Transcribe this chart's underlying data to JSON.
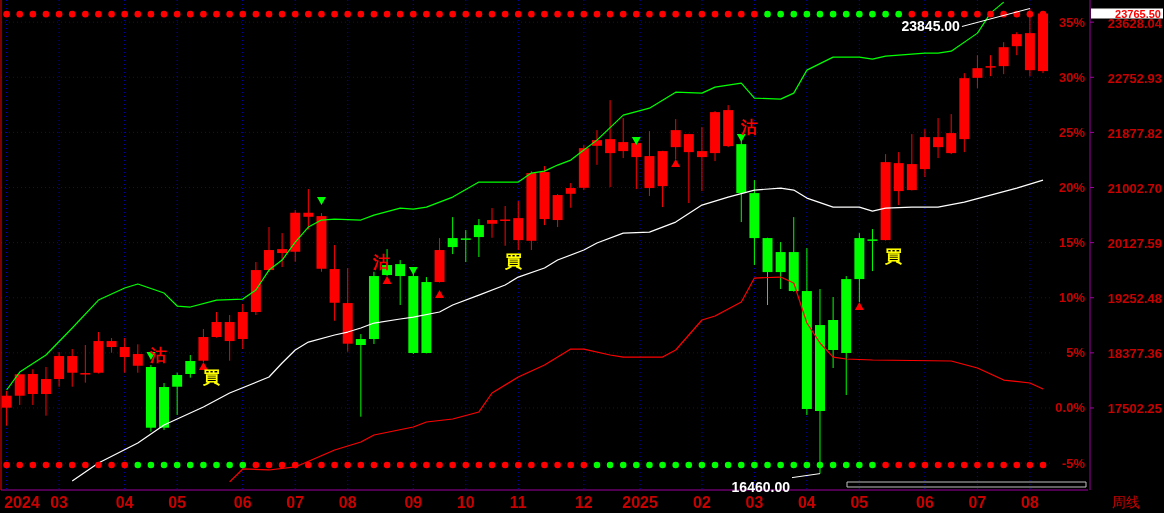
{
  "chart_data": {
    "type": "candlestick",
    "xlabel": "周线",
    "x": [
      "2024-01-29",
      "2024-02-05",
      "2024-02-12",
      "2024-02-19",
      "2024-02-26",
      "2024-03-04",
      "2024-03-11",
      "2024-03-18",
      "2024-03-25",
      "2024-04-01",
      "2024-04-08",
      "2024-04-15",
      "2024-04-22",
      "2024-04-29",
      "2024-05-06",
      "2024-05-13",
      "2024-05-20",
      "2024-05-27",
      "2024-06-03",
      "2024-06-10",
      "2024-06-17",
      "2024-06-24",
      "2024-07-01",
      "2024-07-08",
      "2024-07-15",
      "2024-07-22",
      "2024-07-29",
      "2024-08-05",
      "2024-08-12",
      "2024-08-19",
      "2024-08-26",
      "2024-09-02",
      "2024-09-09",
      "2024-09-16",
      "2024-09-23",
      "2024-09-30",
      "2024-10-07",
      "2024-10-14",
      "2024-10-21",
      "2024-10-28",
      "2024-11-04",
      "2024-11-11",
      "2024-11-18",
      "2024-11-25",
      "2024-12-02",
      "2024-12-09",
      "2024-12-16",
      "2024-12-23",
      "2024-12-30",
      "2025-01-06",
      "2025-01-13",
      "2025-01-20",
      "2025-01-27",
      "2025-02-03",
      "2025-02-10",
      "2025-02-17",
      "2025-02-24",
      "2025-03-03",
      "2025-03-10",
      "2025-03-17",
      "2025-03-24",
      "2025-03-31",
      "2025-04-07",
      "2025-04-14",
      "2025-04-21",
      "2025-04-28",
      "2025-05-05",
      "2025-05-12",
      "2025-05-19",
      "2025-05-26",
      "2025-06-02",
      "2025-06-09",
      "2025-06-16",
      "2025-06-23",
      "2025-06-30",
      "2025-07-07",
      "2025-07-14",
      "2025-07-21",
      "2025-07-28",
      "2025-08-04"
    ],
    "ohlc": [
      [
        17507,
        17772,
        17221,
        17697
      ],
      [
        17697,
        18042,
        17550,
        18037
      ],
      [
        17724,
        18116,
        17550,
        18042
      ],
      [
        17724,
        18153,
        17380,
        17962
      ],
      [
        17962,
        18386,
        17840,
        18327
      ],
      [
        18062,
        18438,
        17840,
        18327
      ],
      [
        18053,
        18502,
        17904,
        18057
      ],
      [
        18062,
        18708,
        18050,
        18565
      ],
      [
        18470,
        18613,
        18380,
        18565
      ],
      [
        18311,
        18613,
        18062,
        18470
      ],
      [
        18173,
        18513,
        18062,
        18359
      ],
      [
        18153,
        18184,
        17126,
        17189
      ],
      [
        17835,
        17899,
        17153,
        17189
      ],
      [
        18026,
        18062,
        17391,
        17840
      ],
      [
        18248,
        18343,
        17983,
        18042
      ],
      [
        18253,
        18756,
        18232,
        18629
      ],
      [
        18629,
        19026,
        18620,
        18867
      ],
      [
        18565,
        18978,
        18253,
        18867
      ],
      [
        18597,
        19153,
        18438,
        19026
      ],
      [
        19026,
        19819,
        18978,
        19692
      ],
      [
        19692,
        20375,
        19660,
        20010
      ],
      [
        19962,
        20279,
        19740,
        20025
      ],
      [
        19983,
        20644,
        19824,
        20602
      ],
      [
        20538,
        20978,
        20338,
        20602
      ],
      [
        19713,
        20597,
        19665,
        20549
      ],
      [
        19173,
        20089,
        18888,
        19708
      ],
      [
        18523,
        19724,
        18396,
        19168
      ],
      [
        18597,
        18676,
        17364,
        18502
      ],
      [
        19597,
        19665,
        18518,
        18597
      ],
      [
        19772,
        20025,
        19600,
        19613
      ],
      [
        19787,
        19851,
        19137,
        19597
      ],
      [
        19597,
        19665,
        18359,
        18375
      ],
      [
        19502,
        19581,
        18370,
        18375
      ],
      [
        19502,
        20200,
        19495,
        20010
      ],
      [
        20200,
        20533,
        19946,
        20057
      ],
      [
        20195,
        20327,
        19819,
        20190
      ],
      [
        20406,
        20502,
        19899,
        20216
      ],
      [
        20427,
        20676,
        20205,
        20486
      ],
      [
        20490,
        20708,
        20078,
        20495
      ],
      [
        20168,
        20787,
        20010,
        20517
      ],
      [
        20157,
        21263,
        20010,
        21232
      ],
      [
        20502,
        21343,
        20406,
        21248
      ],
      [
        20486,
        20898,
        20375,
        20883
      ],
      [
        20903,
        21073,
        20681,
        20994
      ],
      [
        20998,
        21676,
        20962,
        21628
      ],
      [
        21665,
        21914,
        21363,
        21755
      ],
      [
        21549,
        22390,
        21009,
        21771
      ],
      [
        21581,
        22105,
        21470,
        21724
      ],
      [
        21486,
        21712,
        20978,
        21708
      ],
      [
        20994,
        21898,
        20867,
        21502
      ],
      [
        21025,
        21585,
        20692,
        21581
      ],
      [
        21644,
        22089,
        21454,
        21914
      ],
      [
        21565,
        21855,
        20756,
        21851
      ],
      [
        21486,
        21962,
        20946,
        21581
      ],
      [
        21549,
        22216,
        21422,
        22200
      ],
      [
        21660,
        22311,
        21644,
        22232
      ],
      [
        21692,
        21803,
        20454,
        20914
      ],
      [
        20914,
        21121,
        19772,
        20200
      ],
      [
        20200,
        20205,
        19137,
        19660
      ],
      [
        19978,
        20137,
        19391,
        19660
      ],
      [
        19978,
        20533,
        19350,
        19359
      ],
      [
        19359,
        20041,
        17391,
        17486
      ],
      [
        18819,
        19391,
        16460,
        17454
      ],
      [
        18899,
        19264,
        18137,
        18423
      ],
      [
        19549,
        19597,
        17708,
        18375
      ],
      [
        20200,
        20279,
        19184,
        19549
      ],
      [
        20179,
        20343,
        19676,
        20175
      ],
      [
        20168,
        21533,
        20160,
        21406
      ],
      [
        20946,
        21565,
        20724,
        21390
      ],
      [
        20962,
        21851,
        20955,
        21375
      ],
      [
        21295,
        21930,
        21168,
        21803
      ],
      [
        21644,
        22105,
        21470,
        21803
      ],
      [
        21549,
        22168,
        21533,
        21867
      ],
      [
        21771,
        22819,
        21565,
        22739
      ],
      [
        22744,
        23104,
        22581,
        22898
      ],
      [
        22925,
        23104,
        22771,
        22930
      ],
      [
        22930,
        23311,
        22803,
        23231
      ],
      [
        23247,
        23469,
        23104,
        23438
      ],
      [
        22866,
        23845,
        22771,
        23454
      ],
      [
        22851,
        23787,
        22819,
        23765.5
      ]
    ],
    "colors": [
      "#ff0000",
      "#ff0000",
      "#ff0000",
      "#ff0000",
      "#ff0000",
      "#ff0000",
      "#ff0000",
      "#ff0000",
      "#ff0000",
      "#ff0000",
      "#ff0000",
      "#00ff00",
      "#00ff00",
      "#00ff00",
      "#00ff00",
      "#ff0000",
      "#ff0000",
      "#ff0000",
      "#ff0000",
      "#ff0000",
      "#ff0000",
      "#ff0000",
      "#ff0000",
      "#ff0000",
      "#ff0000",
      "#ff0000",
      "#ff0000",
      "#00ff00",
      "#00ff00",
      "#00ff00",
      "#00ff00",
      "#00ff00",
      "#00ff00",
      "#ff0000",
      "#00ff00",
      "#00ff00",
      "#00ff00",
      "#ff0000",
      "#ff0000",
      "#ff0000",
      "#ff0000",
      "#ff0000",
      "#ff0000",
      "#ff0000",
      "#ff0000",
      "#ff0000",
      "#ff0000",
      "#ff0000",
      "#ff0000",
      "#ff0000",
      "#ff0000",
      "#ff0000",
      "#ff0000",
      "#ff0000",
      "#ff0000",
      "#ff0000",
      "#00ff00",
      "#00ff00",
      "#00ff00",
      "#00ff00",
      "#00ff00",
      "#00ff00",
      "#00ff00",
      "#00ff00",
      "#00ff00",
      "#00ff00",
      "#00ff00",
      "#ff0000",
      "#ff0000",
      "#ff0000",
      "#ff0000",
      "#ff0000",
      "#ff0000",
      "#ff0000",
      "#ff0000",
      "#ff0000",
      "#ff0000",
      "#ff0000",
      "#ff0000",
      "#ff0000"
    ],
    "series": [
      {
        "type": "line",
        "color": "#00ff00",
        "x": [
          "2024-01-29",
          "2024-02-05",
          "2024-02-19",
          "2024-03-04",
          "2024-03-18",
          "2024-04-01",
          "2024-04-08",
          "2024-04-22",
          "2024-04-29",
          "2024-05-06",
          "2024-05-20",
          "2024-06-03",
          "2024-06-10",
          "2024-06-17",
          "2024-06-24",
          "2024-07-01",
          "2024-07-08",
          "2024-07-15",
          "2024-07-22",
          "2024-08-05",
          "2024-08-12",
          "2024-08-26",
          "2024-09-02",
          "2024-09-09",
          "2024-09-23",
          "2024-10-07",
          "2024-10-28",
          "2024-11-04",
          "2024-11-11",
          "2024-11-18",
          "2024-11-25",
          "2024-12-02",
          "2024-12-09",
          "2024-12-23",
          "2025-01-06",
          "2025-01-20",
          "2025-02-03",
          "2025-02-10",
          "2025-02-17",
          "2025-02-24",
          "2025-03-03",
          "2025-03-17",
          "2025-03-24",
          "2025-03-31",
          "2025-04-14",
          "2025-04-28",
          "2025-05-05",
          "2025-05-12",
          "2025-06-02",
          "2025-06-09",
          "2025-06-16",
          "2025-06-30",
          "2025-07-07",
          "2025-07-14"
        ],
        "values": [
          17788,
          18073,
          18343,
          18772,
          19216,
          19407,
          19470,
          19327,
          19121,
          19105,
          19216,
          19232,
          19375,
          19692,
          19851,
          20137,
          20375,
          20486,
          20502,
          20486,
          20565,
          20676,
          20660,
          20692,
          20851,
          21089,
          21089,
          21232,
          21263,
          21359,
          21438,
          21597,
          21755,
          22152,
          22263,
          22517,
          22501,
          22597,
          22628,
          22660,
          22422,
          22406,
          22502,
          22866,
          23073,
          23073,
          23041,
          23089,
          23136,
          23136,
          23168,
          23454,
          23771,
          23946
        ]
      },
      {
        "type": "line",
        "color": "#ffffff",
        "x": [
          "2024-03-04",
          "2024-03-18",
          "2024-04-08",
          "2024-04-22",
          "2024-05-13",
          "2024-05-27",
          "2024-06-17",
          "2024-06-24",
          "2024-07-01",
          "2024-07-08",
          "2024-07-22",
          "2024-07-29",
          "2024-08-05",
          "2024-08-12",
          "2024-08-26",
          "2024-09-02",
          "2024-09-16",
          "2024-09-23",
          "2024-10-07",
          "2024-10-21",
          "2024-10-28",
          "2024-11-11",
          "2024-11-18",
          "2024-12-02",
          "2024-12-09",
          "2024-12-23",
          "2025-01-06",
          "2025-01-20",
          "2025-02-03",
          "2025-02-17",
          "2025-03-03",
          "2025-03-17",
          "2025-03-24",
          "2025-03-31",
          "2025-04-14",
          "2025-04-28",
          "2025-05-05",
          "2025-05-12",
          "2025-05-26",
          "2025-06-09",
          "2025-06-23",
          "2025-07-07",
          "2025-07-21",
          "2025-08-04"
        ],
        "values": [
          16343,
          16629,
          16947,
          17232,
          17518,
          17740,
          17994,
          18216,
          18423,
          18549,
          18661,
          18708,
          18772,
          18851,
          18915,
          18946,
          19026,
          19137,
          19295,
          19454,
          19581,
          19724,
          19851,
          20010,
          20121,
          20279,
          20295,
          20454,
          20724,
          20851,
          20962,
          20994,
          20962,
          20835,
          20692,
          20692,
          20629,
          20676,
          20692,
          20692,
          20771,
          20883,
          20994,
          21121
        ]
      },
      {
        "type": "line",
        "color": "#ff0000",
        "x": [
          "2024-05-27",
          "2024-06-03",
          "2024-06-17",
          "2024-07-01",
          "2024-07-22",
          "2024-08-05",
          "2024-08-12",
          "2024-09-02",
          "2024-09-09",
          "2024-09-23",
          "2024-10-07",
          "2024-10-14",
          "2024-10-28",
          "2024-11-11",
          "2024-11-18",
          "2024-11-25",
          "2024-12-02",
          "2024-12-16",
          "2024-12-23",
          "2025-01-13",
          "2025-01-20",
          "2025-02-03",
          "2025-02-10",
          "2025-02-24",
          "2025-03-03",
          "2025-03-17",
          "2025-03-24",
          "2025-03-31",
          "2025-04-07",
          "2025-04-14",
          "2025-04-21",
          "2025-05-05",
          "2025-06-16",
          "2025-06-30",
          "2025-07-14",
          "2025-07-28",
          "2025-08-04"
        ],
        "values": [
          16328,
          16534,
          16518,
          16566,
          16835,
          16962,
          17073,
          17200,
          17280,
          17327,
          17439,
          17740,
          17994,
          18184,
          18311,
          18438,
          18438,
          18343,
          18311,
          18311,
          18423,
          18899,
          18962,
          19184,
          19565,
          19581,
          19486,
          18851,
          18534,
          18311,
          18280,
          18264,
          18248,
          18137,
          17946,
          17899,
          17804
        ]
      },
      {
        "type": "scatter",
        "marker": "triangle",
        "color": "#00ff00",
        "x": [
          "2024-04-15",
          "2024-07-15",
          "2024-09-02",
          "2024-12-30",
          "2025-02-24"
        ],
        "values": [
          18327,
          20787,
          19676,
          21740,
          21787
        ]
      },
      {
        "type": "scatter",
        "marker": "triangle",
        "color": "#ff0000",
        "x": [
          "2024-05-13",
          "2024-08-19",
          "2024-09-16",
          "2025-01-20",
          "2025-04-28"
        ],
        "values": [
          18169,
          19534,
          19311,
          21390,
          19121
        ]
      },
      {
        "type": "scatter",
        "marker": "circle",
        "values": [
          23755,
          23755,
          23755,
          23755,
          23755,
          23755,
          23755,
          23755,
          23755,
          23755,
          23755,
          23755,
          23755,
          23755,
          23755,
          23755,
          23755,
          23755,
          23755,
          23755,
          23755,
          23755,
          23755,
          23755,
          23755,
          23755,
          23755,
          23755,
          23755,
          23755,
          23755,
          23755,
          23755,
          23755,
          23755,
          23755,
          23755,
          23755,
          23755,
          23755,
          23755,
          23755,
          23755,
          23755,
          23755,
          23755,
          23755,
          23755,
          23755,
          23755,
          23755,
          23755,
          23755,
          23755,
          23755,
          23755,
          23755,
          23755,
          23755,
          23755,
          23755,
          23755,
          23755,
          23755,
          23755,
          23755,
          23755,
          23755,
          23755,
          23755,
          23755,
          23755,
          23755,
          23755,
          23755,
          23755,
          23755,
          23755,
          23755,
          23755
        ],
        "colors": [
          "#ff0000",
          "#ff0000",
          "#ff0000",
          "#ff0000",
          "#ff0000",
          "#ff0000",
          "#ff0000",
          "#ff0000",
          "#ff0000",
          "#ff0000",
          "#ff0000",
          "#ff0000",
          "#ff0000",
          "#ff0000",
          "#ff0000",
          "#ff0000",
          "#ff0000",
          "#ff0000",
          "#ff0000",
          "#ff0000",
          "#ff0000",
          "#ff0000",
          "#ff0000",
          "#ff0000",
          "#ff0000",
          "#ff0000",
          "#ff0000",
          "#ff0000",
          "#ff0000",
          "#ff0000",
          "#ff0000",
          "#ff0000",
          "#ff0000",
          "#ff0000",
          "#ff0000",
          "#ff0000",
          "#ff0000",
          "#ff0000",
          "#ff0000",
          "#ff0000",
          "#ff0000",
          "#ff0000",
          "#ff0000",
          "#ff0000",
          "#ff0000",
          "#ff0000",
          "#ff0000",
          "#ff0000",
          "#ff0000",
          "#ff0000",
          "#ff0000",
          "#ff0000",
          "#ff0000",
          "#ff0000",
          "#ff0000",
          "#ff0000",
          "#ff0000",
          "#ff0000",
          "#00ff00",
          "#00ff00",
          "#00ff00",
          "#00ff00",
          "#00ff00",
          "#00ff00",
          "#00ff00",
          "#00ff00",
          "#00ff00",
          "#00ff00",
          "#00ff00",
          "#ff0000",
          "#ff0000",
          "#ff0000",
          "#ff0000",
          "#ff0000",
          "#ff0000",
          "#ff0000",
          "#ff0000",
          "#ff0000",
          "#ff0000",
          "#ff0000"
        ]
      },
      {
        "type": "scatter",
        "marker": "circle",
        "values": [
          16597,
          16597,
          16597,
          16597,
          16597,
          16597,
          16597,
          16597,
          16597,
          16597,
          16597,
          16597,
          16597,
          16597,
          16597,
          16597,
          16597,
          16597,
          16597,
          16597,
          16597,
          16597,
          16597,
          16597,
          16597,
          16597,
          16597,
          16597,
          16597,
          16597,
          16597,
          16597,
          16597,
          16597,
          16597,
          16597,
          16597,
          16597,
          16597,
          16597,
          16597,
          16597,
          16597,
          16597,
          16597,
          16597,
          16597,
          16597,
          16597,
          16597,
          16597,
          16597,
          16597,
          16597,
          16597,
          16597,
          16597,
          16597,
          16597,
          16597,
          16597,
          16597,
          16597,
          16597,
          16597,
          16597,
          16597,
          16597,
          16597,
          16597,
          16597,
          16597,
          16597,
          16597,
          16597,
          16597,
          16597,
          16597,
          16597,
          16597
        ],
        "colors": [
          "#ff0000",
          "#ff0000",
          "#ff0000",
          "#ff0000",
          "#ff0000",
          "#ff0000",
          "#ff0000",
          "#ff0000",
          "#ff0000",
          "#ff0000",
          "#00ff00",
          "#00ff00",
          "#00ff00",
          "#00ff00",
          "#00ff00",
          "#00ff00",
          "#00ff00",
          "#00ff00",
          "#00ff00",
          "#ff0000",
          "#ff0000",
          "#ff0000",
          "#ff0000",
          "#ff0000",
          "#ff0000",
          "#ff0000",
          "#ff0000",
          "#ff0000",
          "#ff0000",
          "#ff0000",
          "#ff0000",
          "#ff0000",
          "#ff0000",
          "#ff0000",
          "#ff0000",
          "#ff0000",
          "#ff0000",
          "#ff0000",
          "#ff0000",
          "#ff0000",
          "#ff0000",
          "#ff0000",
          "#ff0000",
          "#ff0000",
          "#ff0000",
          "#00ff00",
          "#00ff00",
          "#00ff00",
          "#00ff00",
          "#00ff00",
          "#00ff00",
          "#00ff00",
          "#00ff00",
          "#00ff00",
          "#00ff00",
          "#00ff00",
          "#00ff00",
          "#00ff00",
          "#00ff00",
          "#00ff00",
          "#00ff00",
          "#00ff00",
          "#00ff00",
          "#00ff00",
          "#00ff00",
          "#00ff00",
          "#00ff00",
          "#ff0000",
          "#ff0000",
          "#ff0000",
          "#ff0000",
          "#ff0000",
          "#ff0000",
          "#ff0000",
          "#ff0000",
          "#ff0000",
          "#ff0000",
          "#ff0000",
          "#ff0000",
          "#ff0000"
        ]
      }
    ],
    "xlim": [
      "2024-01-26",
      "2025-08-28"
    ],
    "xticks": [
      {
        "value": "2024-01-29",
        "label": "2024"
      },
      {
        "value": "2024-02-26",
        "label": "03"
      },
      {
        "value": "2024-04-01",
        "label": "04"
      },
      {
        "value": "2024-04-29",
        "label": "05"
      },
      {
        "value": "2024-06-03",
        "label": "06"
      },
      {
        "value": "2024-07-01",
        "label": "07"
      },
      {
        "value": "2024-07-29",
        "label": "08"
      },
      {
        "value": "2024-09-02",
        "label": "09"
      },
      {
        "value": "2024-09-30",
        "label": "10"
      },
      {
        "value": "2024-10-28",
        "label": "11"
      },
      {
        "value": "2024-12-02",
        "label": "12"
      },
      {
        "value": "2025-01-01",
        "label": "2025"
      },
      {
        "value": "2025-02-03",
        "label": "02"
      },
      {
        "value": "2025-03-03",
        "label": "03"
      },
      {
        "value": "2025-03-31",
        "label": "04"
      },
      {
        "value": "2025-04-28",
        "label": "05"
      },
      {
        "value": "2025-06-02",
        "label": "06"
      },
      {
        "value": "2025-06-30",
        "label": "07"
      },
      {
        "value": "2025-07-28",
        "label": "08"
      }
    ],
    "ylim": [
      16200,
      23980
    ],
    "yticks": [
      {
        "value": 17502.25,
        "label": "17502.25"
      },
      {
        "value": 18377.36,
        "label": "18377.36"
      },
      {
        "value": 19252.48,
        "label": "19252.48"
      },
      {
        "value": 20127.59,
        "label": "20127.59"
      },
      {
        "value": 21002.7,
        "label": "21002.70"
      },
      {
        "value": 21877.82,
        "label": "21877.82"
      },
      {
        "value": 22752.93,
        "label": "22752.93"
      },
      {
        "value": 23628.04,
        "label": "23628.04"
      },
      {
        "value": 23765.5,
        "label": "23765.50"
      }
    ],
    "y2lim": [
      -7.44,
      37.01
    ],
    "y2ticks": [
      {
        "value": -5,
        "label": "-5%"
      },
      {
        "value": 0,
        "label": "0.0%"
      },
      {
        "value": 5,
        "label": "5%"
      },
      {
        "value": 10,
        "label": "10%"
      },
      {
        "value": 15,
        "label": "15%"
      },
      {
        "value": 20,
        "label": "20%"
      },
      {
        "value": 25,
        "label": "25%"
      },
      {
        "value": 30,
        "label": "30%"
      },
      {
        "value": 35,
        "label": "35%"
      }
    ],
    "annotations": [
      {
        "text": "沽",
        "x": "2024-04-15",
        "y": 18184
      },
      {
        "text": "買",
        "x": "2024-05-13",
        "y": 18232
      },
      {
        "text": "沽",
        "x": "2024-08-12",
        "y": 19665
      },
      {
        "text": "買",
        "x": "2024-10-21",
        "y": 20078
      },
      {
        "text": "沽",
        "x": "2025-02-24",
        "y": 21803
      },
      {
        "text": "買",
        "x": "2025-05-12",
        "y": 20160
      },
      {
        "text": "23845.00",
        "x": "2025-07-28",
        "y": 23845
      },
      {
        "text": "16460.00",
        "x": "2025-04-07",
        "y": 16460
      }
    ],
    "grid": true
  }
}
